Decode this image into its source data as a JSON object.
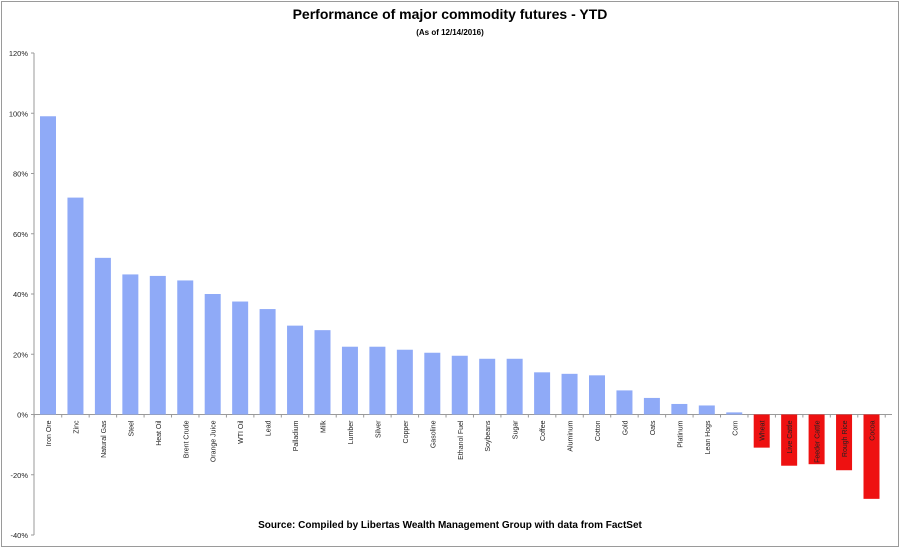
{
  "chart_data": {
    "type": "bar",
    "title": "Performance of major commodity futures - YTD",
    "subtitle": "(As of 12/14/2016)",
    "source": "Source:  Compiled by Libertas Wealth Management Group with data from FactSet",
    "xlabel": "",
    "ylabel": "",
    "ylim": [
      -40,
      120
    ],
    "yticks": [
      -40,
      -20,
      0,
      20,
      40,
      60,
      80,
      100,
      120
    ],
    "ytick_labels": [
      "-40%",
      "-20%",
      "0%",
      "20%",
      "40%",
      "60%",
      "80%",
      "100%",
      "120%"
    ],
    "grid": false,
    "legend": "none",
    "colors": {
      "positive": "#8faaf7",
      "negative": "#ee1111"
    },
    "categories": [
      "Iron Ore",
      "Zinc",
      "Natural Gas",
      "Steel",
      "Heat Oil",
      "Brent Crude",
      "Orange Juice",
      "WTI Oil",
      "Lead",
      "Palladium",
      "Milk",
      "Lumber",
      "Silver",
      "Copper",
      "Gasoline",
      "Ethanol Fuel",
      "Soybeans",
      "Sugar",
      "Coffee",
      "Aluminum",
      "Cotton",
      "Gold",
      "Oats",
      "Platinum",
      "Lean Hogs",
      "Corn",
      "Wheat",
      "Live Cattle",
      "Feeder Cattle",
      "Rough Rice",
      "Cocoa"
    ],
    "values": [
      99,
      72,
      52,
      46.5,
      46,
      44.5,
      40,
      37.5,
      35,
      29.5,
      28,
      22.5,
      22.5,
      21.5,
      20.5,
      19.5,
      18.5,
      18.5,
      14,
      13.5,
      13,
      8,
      5.5,
      3.5,
      3,
      0.7,
      -11,
      -17,
      -16.5,
      -18.5,
      -28
    ]
  }
}
